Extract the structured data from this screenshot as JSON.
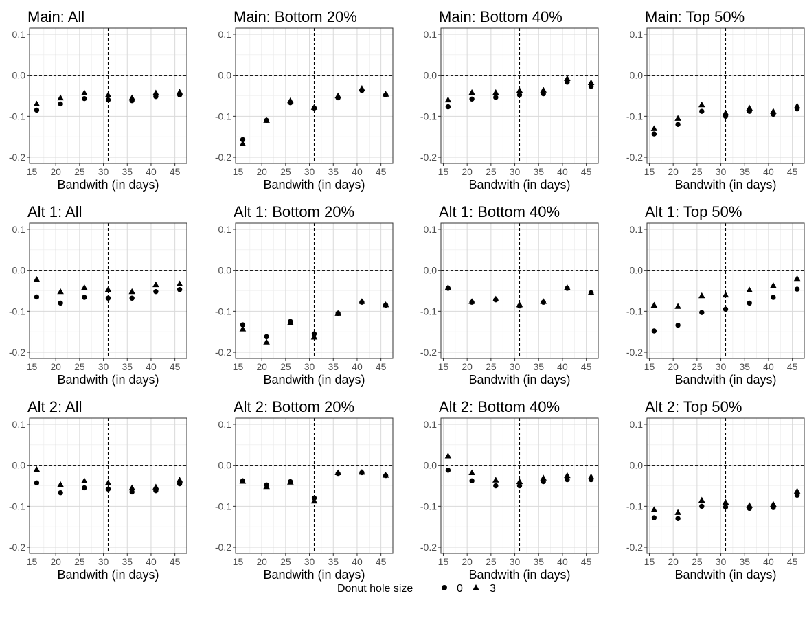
{
  "figure": {
    "legend": {
      "title": "Donut hole size",
      "items": [
        {
          "label": "0",
          "shape": "circle"
        },
        {
          "label": "3",
          "shape": "triangle"
        }
      ]
    }
  },
  "chart_data": [
    {
      "type": "scatter",
      "title": "Main: All",
      "xlabel": "Bandwith (in days)",
      "xlim": [
        14.5,
        47.5
      ],
      "ylim": [
        -0.215,
        0.115
      ],
      "xticks": [
        15,
        20,
        25,
        30,
        35,
        40,
        45
      ],
      "yticks": [
        -0.2,
        -0.1,
        0.0,
        0.1
      ],
      "ytick_labels": [
        "-0.2",
        "-0.1",
        "0.0",
        "0.1"
      ],
      "vline": 31,
      "hline": 0,
      "x": [
        16,
        21,
        26,
        31,
        36,
        41,
        46
      ],
      "series": [
        {
          "name": "0",
          "marker": "circle",
          "values": [
            -0.085,
            -0.07,
            -0.057,
            -0.06,
            -0.062,
            -0.052,
            -0.048
          ]
        },
        {
          "name": "3",
          "marker": "triangle",
          "values": [
            -0.07,
            -0.055,
            -0.043,
            -0.048,
            -0.055,
            -0.043,
            -0.041
          ]
        }
      ]
    },
    {
      "type": "scatter",
      "title": "Main: Bottom 20%",
      "xlabel": "Bandwith (in days)",
      "xlim": [
        14.5,
        47.5
      ],
      "ylim": [
        -0.215,
        0.115
      ],
      "xticks": [
        15,
        20,
        25,
        30,
        35,
        40,
        45
      ],
      "yticks": [
        -0.2,
        -0.1,
        0.0,
        0.1
      ],
      "ytick_labels": [
        "-0.2",
        "-0.1",
        "0.0",
        "0.1"
      ],
      "vline": 31,
      "hline": 0,
      "x": [
        16,
        21,
        26,
        31,
        36,
        41,
        46
      ],
      "series": [
        {
          "name": "0",
          "marker": "circle",
          "values": [
            -0.157,
            -0.11,
            -0.067,
            -0.08,
            -0.055,
            -0.037,
            -0.048
          ]
        },
        {
          "name": "3",
          "marker": "triangle",
          "values": [
            -0.167,
            -0.11,
            -0.062,
            -0.078,
            -0.05,
            -0.032,
            -0.046
          ]
        }
      ]
    },
    {
      "type": "scatter",
      "title": "Main: Bottom 40%",
      "xlabel": "Bandwith (in days)",
      "xlim": [
        14.5,
        47.5
      ],
      "ylim": [
        -0.215,
        0.115
      ],
      "xticks": [
        15,
        20,
        25,
        30,
        35,
        40,
        45
      ],
      "yticks": [
        -0.2,
        -0.1,
        0.0,
        0.1
      ],
      "ytick_labels": [
        "-0.2",
        "-0.1",
        "0.0",
        "0.1"
      ],
      "vline": 31,
      "hline": 0,
      "x": [
        16,
        21,
        26,
        31,
        36,
        41,
        46
      ],
      "series": [
        {
          "name": "0",
          "marker": "circle",
          "values": [
            -0.077,
            -0.058,
            -0.054,
            -0.048,
            -0.045,
            -0.017,
            -0.027
          ]
        },
        {
          "name": "3",
          "marker": "triangle",
          "values": [
            -0.06,
            -0.042,
            -0.042,
            -0.037,
            -0.036,
            -0.008,
            -0.018
          ]
        }
      ]
    },
    {
      "type": "scatter",
      "title": "Main: Top 50%",
      "xlabel": "Bandwith (in days)",
      "xlim": [
        14.5,
        47.5
      ],
      "ylim": [
        -0.215,
        0.115
      ],
      "xticks": [
        15,
        20,
        25,
        30,
        35,
        40,
        45
      ],
      "yticks": [
        -0.2,
        -0.1,
        0.0,
        0.1
      ],
      "ytick_labels": [
        "-0.2",
        "-0.1",
        "0.0",
        "0.1"
      ],
      "vline": 31,
      "hline": 0,
      "x": [
        16,
        21,
        26,
        31,
        36,
        41,
        46
      ],
      "series": [
        {
          "name": "0",
          "marker": "circle",
          "values": [
            -0.143,
            -0.12,
            -0.088,
            -0.1,
            -0.088,
            -0.095,
            -0.082
          ]
        },
        {
          "name": "3",
          "marker": "triangle",
          "values": [
            -0.13,
            -0.105,
            -0.072,
            -0.092,
            -0.08,
            -0.088,
            -0.075
          ]
        }
      ]
    },
    {
      "type": "scatter",
      "title": "Alt 1: All",
      "xlabel": "Bandwith (in days)",
      "xlim": [
        14.5,
        47.5
      ],
      "ylim": [
        -0.215,
        0.115
      ],
      "xticks": [
        15,
        20,
        25,
        30,
        35,
        40,
        45
      ],
      "yticks": [
        -0.2,
        -0.1,
        0.0,
        0.1
      ],
      "ytick_labels": [
        "-0.2",
        "-0.1",
        "0.0",
        "0.1"
      ],
      "vline": 31,
      "hline": 0,
      "x": [
        16,
        21,
        26,
        31,
        36,
        41,
        46
      ],
      "series": [
        {
          "name": "0",
          "marker": "circle",
          "values": [
            -0.065,
            -0.08,
            -0.066,
            -0.068,
            -0.068,
            -0.052,
            -0.047
          ]
        },
        {
          "name": "3",
          "marker": "triangle",
          "values": [
            -0.022,
            -0.052,
            -0.042,
            -0.047,
            -0.052,
            -0.035,
            -0.033
          ]
        }
      ]
    },
    {
      "type": "scatter",
      "title": "Alt 1: Bottom 20%",
      "xlabel": "Bandwith (in days)",
      "xlim": [
        14.5,
        47.5
      ],
      "ylim": [
        -0.215,
        0.115
      ],
      "xticks": [
        15,
        20,
        25,
        30,
        35,
        40,
        45
      ],
      "yticks": [
        -0.2,
        -0.1,
        0.0,
        0.1
      ],
      "ytick_labels": [
        "-0.2",
        "-0.1",
        "0.0",
        "0.1"
      ],
      "vline": 31,
      "hline": 0,
      "x": [
        16,
        21,
        26,
        31,
        36,
        41,
        46
      ],
      "series": [
        {
          "name": "0",
          "marker": "circle",
          "values": [
            -0.133,
            -0.162,
            -0.125,
            -0.155,
            -0.105,
            -0.078,
            -0.085
          ]
        },
        {
          "name": "3",
          "marker": "triangle",
          "values": [
            -0.143,
            -0.175,
            -0.128,
            -0.163,
            -0.105,
            -0.076,
            -0.084
          ]
        }
      ]
    },
    {
      "type": "scatter",
      "title": "Alt 1: Bottom 40%",
      "xlabel": "Bandwith (in days)",
      "xlim": [
        14.5,
        47.5
      ],
      "ylim": [
        -0.215,
        0.115
      ],
      "xticks": [
        15,
        20,
        25,
        30,
        35,
        40,
        45
      ],
      "yticks": [
        -0.2,
        -0.1,
        0.0,
        0.1
      ],
      "ytick_labels": [
        "-0.2",
        "-0.1",
        "0.0",
        "0.1"
      ],
      "vline": 31,
      "hline": 0,
      "x": [
        16,
        21,
        26,
        31,
        36,
        41,
        46
      ],
      "series": [
        {
          "name": "0",
          "marker": "circle",
          "values": [
            -0.044,
            -0.078,
            -0.072,
            -0.087,
            -0.078,
            -0.044,
            -0.055
          ]
        },
        {
          "name": "3",
          "marker": "triangle",
          "values": [
            -0.042,
            -0.076,
            -0.07,
            -0.084,
            -0.076,
            -0.042,
            -0.054
          ]
        }
      ]
    },
    {
      "type": "scatter",
      "title": "Alt 1: Top 50%",
      "xlabel": "Bandwith (in days)",
      "xlim": [
        14.5,
        47.5
      ],
      "ylim": [
        -0.215,
        0.115
      ],
      "xticks": [
        15,
        20,
        25,
        30,
        35,
        40,
        45
      ],
      "yticks": [
        -0.2,
        -0.1,
        0.0,
        0.1
      ],
      "ytick_labels": [
        "-0.2",
        "-0.1",
        "0.0",
        "0.1"
      ],
      "vline": 31,
      "hline": 0,
      "x": [
        16,
        21,
        26,
        31,
        36,
        41,
        46
      ],
      "series": [
        {
          "name": "0",
          "marker": "circle",
          "values": [
            -0.148,
            -0.134,
            -0.103,
            -0.095,
            -0.08,
            -0.066,
            -0.046
          ]
        },
        {
          "name": "3",
          "marker": "triangle",
          "values": [
            -0.085,
            -0.088,
            -0.062,
            -0.06,
            -0.048,
            -0.037,
            -0.02
          ]
        }
      ]
    },
    {
      "type": "scatter",
      "title": "Alt 2: All",
      "xlabel": "Bandwith (in days)",
      "xlim": [
        14.5,
        47.5
      ],
      "ylim": [
        -0.215,
        0.115
      ],
      "xticks": [
        15,
        20,
        25,
        30,
        35,
        40,
        45
      ],
      "yticks": [
        -0.2,
        -0.1,
        0.0,
        0.1
      ],
      "ytick_labels": [
        "-0.2",
        "-0.1",
        "0.0",
        "0.1"
      ],
      "vline": 31,
      "hline": 0,
      "x": [
        16,
        21,
        26,
        31,
        36,
        41,
        46
      ],
      "series": [
        {
          "name": "0",
          "marker": "circle",
          "values": [
            -0.043,
            -0.067,
            -0.055,
            -0.058,
            -0.065,
            -0.062,
            -0.045
          ]
        },
        {
          "name": "3",
          "marker": "triangle",
          "values": [
            -0.01,
            -0.047,
            -0.038,
            -0.043,
            -0.055,
            -0.053,
            -0.036
          ]
        }
      ]
    },
    {
      "type": "scatter",
      "title": "Alt 2: Bottom 20%",
      "xlabel": "Bandwith (in days)",
      "xlim": [
        14.5,
        47.5
      ],
      "ylim": [
        -0.215,
        0.115
      ],
      "xticks": [
        15,
        20,
        25,
        30,
        35,
        40,
        45
      ],
      "yticks": [
        -0.2,
        -0.1,
        0.0,
        0.1
      ],
      "ytick_labels": [
        "-0.2",
        "-0.1",
        "0.0",
        "0.1"
      ],
      "vline": 31,
      "hline": 0,
      "x": [
        16,
        21,
        26,
        31,
        36,
        41,
        46
      ],
      "series": [
        {
          "name": "0",
          "marker": "circle",
          "values": [
            -0.038,
            -0.048,
            -0.04,
            -0.08,
            -0.02,
            -0.018,
            -0.025
          ]
        },
        {
          "name": "3",
          "marker": "triangle",
          "values": [
            -0.039,
            -0.052,
            -0.041,
            -0.087,
            -0.018,
            -0.017,
            -0.024
          ]
        }
      ]
    },
    {
      "type": "scatter",
      "title": "Alt 2: Bottom 40%",
      "xlabel": "Bandwith (in days)",
      "xlim": [
        14.5,
        47.5
      ],
      "ylim": [
        -0.215,
        0.115
      ],
      "xticks": [
        15,
        20,
        25,
        30,
        35,
        40,
        45
      ],
      "yticks": [
        -0.2,
        -0.1,
        0.0,
        0.1
      ],
      "ytick_labels": [
        "-0.2",
        "-0.1",
        "0.0",
        "0.1"
      ],
      "vline": 31,
      "hline": 0,
      "x": [
        16,
        21,
        26,
        31,
        36,
        41,
        46
      ],
      "series": [
        {
          "name": "0",
          "marker": "circle",
          "values": [
            -0.012,
            -0.038,
            -0.05,
            -0.05,
            -0.04,
            -0.035,
            -0.035
          ]
        },
        {
          "name": "3",
          "marker": "triangle",
          "values": [
            0.023,
            -0.018,
            -0.036,
            -0.04,
            -0.031,
            -0.025,
            -0.028
          ]
        }
      ]
    },
    {
      "type": "scatter",
      "title": "Alt 2: Top 50%",
      "xlabel": "Bandwith (in days)",
      "xlim": [
        14.5,
        47.5
      ],
      "ylim": [
        -0.215,
        0.115
      ],
      "xticks": [
        15,
        20,
        25,
        30,
        35,
        40,
        45
      ],
      "yticks": [
        -0.2,
        -0.1,
        0.0,
        0.1
      ],
      "ytick_labels": [
        "-0.2",
        "-0.1",
        "0.0",
        "0.1"
      ],
      "vline": 31,
      "hline": 0,
      "x": [
        16,
        21,
        26,
        31,
        36,
        41,
        46
      ],
      "series": [
        {
          "name": "0",
          "marker": "circle",
          "values": [
            -0.128,
            -0.13,
            -0.1,
            -0.102,
            -0.105,
            -0.103,
            -0.073
          ]
        },
        {
          "name": "3",
          "marker": "triangle",
          "values": [
            -0.108,
            -0.115,
            -0.085,
            -0.09,
            -0.098,
            -0.095,
            -0.063
          ]
        }
      ]
    }
  ]
}
